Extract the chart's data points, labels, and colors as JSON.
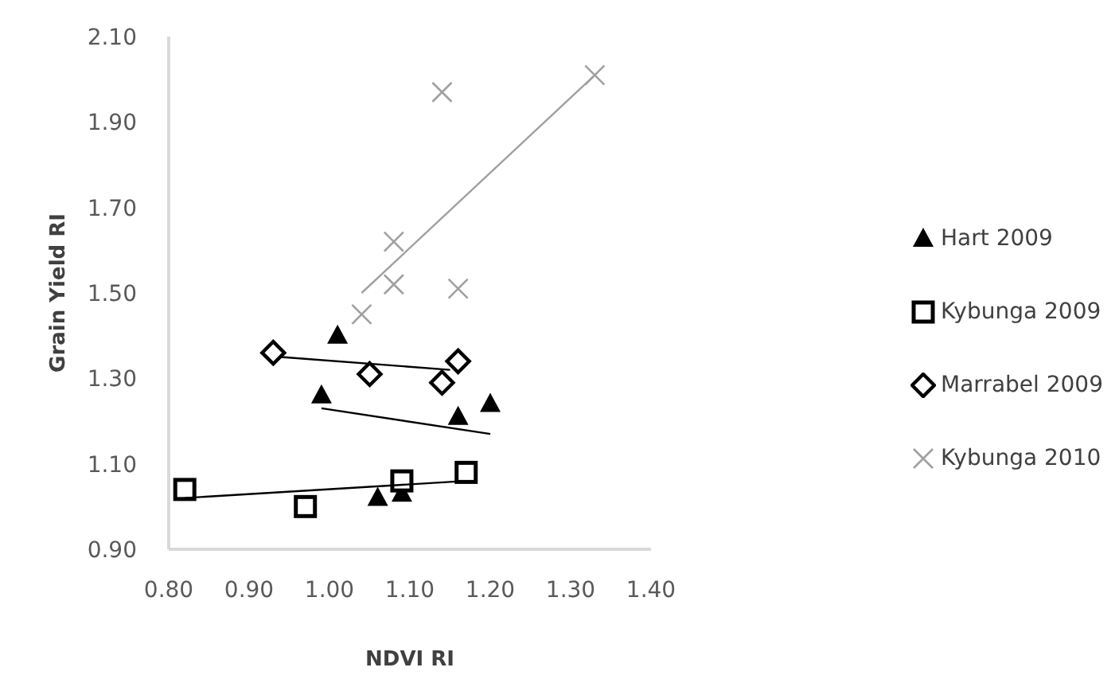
{
  "chart_data": {
    "type": "scatter",
    "xlabel": "NDVI RI",
    "ylabel": "Grain Yield RI",
    "xlim": [
      0.8,
      1.4
    ],
    "xticks": [
      {
        "value": 0.8,
        "label": "0.80"
      },
      {
        "value": 0.9,
        "label": "0.90"
      },
      {
        "value": 1.0,
        "label": "1.00"
      },
      {
        "value": 1.1,
        "label": "1.10"
      },
      {
        "value": 1.2,
        "label": "1.20"
      },
      {
        "value": 1.3,
        "label": "1.30"
      },
      {
        "value": 1.4,
        "label": "1.40"
      }
    ],
    "ylim": [
      0.9,
      2.1
    ],
    "yticks": [
      {
        "value": 0.9,
        "label": "0.90"
      },
      {
        "value": 1.1,
        "label": "1.10"
      },
      {
        "value": 1.3,
        "label": "1.30"
      },
      {
        "value": 1.5,
        "label": "1.50"
      },
      {
        "value": 1.7,
        "label": "1.70"
      },
      {
        "value": 1.9,
        "label": "1.90"
      },
      {
        "value": 2.1,
        "label": "2.10"
      }
    ],
    "grid": false,
    "legend": "right",
    "series": [
      {
        "name": "Hart 2009",
        "color": "#000000",
        "marker": "triangle",
        "x": [
          1.01,
          0.99,
          1.16,
          1.2,
          1.06,
          1.09
        ],
        "values": [
          1.4,
          1.26,
          1.21,
          1.24,
          1.02,
          1.03
        ]
      },
      {
        "name": "Kybunga 2009",
        "color": "#000000",
        "marker": "square",
        "x": [
          0.82,
          0.97,
          1.09,
          1.17
        ],
        "values": [
          1.04,
          1.0,
          1.06,
          1.08
        ]
      },
      {
        "name": "Marrabel 2009",
        "color": "#000000",
        "marker": "diamond",
        "x": [
          0.93,
          1.05,
          1.16,
          1.14
        ],
        "values": [
          1.36,
          1.31,
          1.34,
          1.29
        ]
      },
      {
        "name": "Kybunga 2010",
        "color": "#a0a0a0",
        "marker": "cross",
        "x": [
          1.14,
          1.08,
          1.08,
          1.04,
          1.16,
          1.33
        ],
        "values": [
          1.97,
          1.62,
          1.52,
          1.45,
          1.51,
          2.01
        ]
      },
      {
        "type": "line",
        "color": "#000000",
        "x": [
          0.99,
          1.2
        ],
        "values": [
          1.23,
          1.17
        ]
      },
      {
        "type": "line",
        "color": "#000000",
        "x": [
          0.82,
          1.17
        ],
        "values": [
          1.02,
          1.06
        ]
      },
      {
        "type": "line",
        "color": "#000000",
        "x": [
          0.94,
          1.15
        ],
        "values": [
          1.35,
          1.32
        ]
      },
      {
        "type": "line",
        "color": "#a0a0a0",
        "x": [
          1.04,
          1.33
        ],
        "values": [
          1.5,
          2.01
        ]
      }
    ]
  }
}
